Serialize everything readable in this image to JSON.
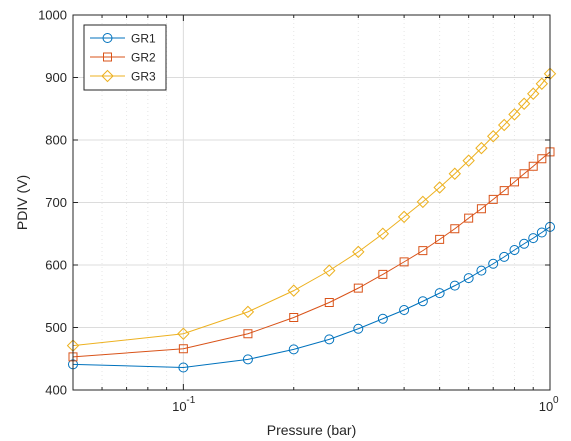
{
  "chart_data": {
    "type": "line",
    "title": "",
    "xlabel": "Pressure (bar)",
    "ylabel": "PDIV (V)",
    "xscale": "log",
    "xlim": [
      0.05,
      1
    ],
    "ylim": [
      400,
      1000
    ],
    "grid": true,
    "legend_position": "top-left",
    "x_tick_labels": [
      {
        "value": 0.1,
        "base": "10",
        "exp": "-1"
      },
      {
        "value": 1,
        "base": "10",
        "exp": "0"
      }
    ],
    "y_ticks": [
      400,
      500,
      600,
      700,
      800,
      900,
      1000
    ],
    "y_tick_labels": [
      "400",
      "500",
      "600",
      "700",
      "800",
      "900",
      "1000"
    ],
    "series": [
      {
        "name": "GR1",
        "color": "#0072BD",
        "marker": "circle",
        "x": [
          0.05,
          0.1,
          0.15,
          0.2,
          0.25,
          0.3,
          0.35,
          0.4,
          0.45,
          0.5,
          0.55,
          0.6,
          0.65,
          0.7,
          0.75,
          0.8,
          0.85,
          0.9,
          0.95,
          1.0
        ],
        "y": [
          441,
          436,
          449,
          465,
          481,
          498,
          514,
          528,
          542,
          555,
          567,
          579,
          591,
          602,
          613,
          624,
          634,
          643,
          652,
          661
        ]
      },
      {
        "name": "GR2",
        "color": "#D95319",
        "marker": "square",
        "x": [
          0.05,
          0.1,
          0.15,
          0.2,
          0.25,
          0.3,
          0.35,
          0.4,
          0.45,
          0.5,
          0.55,
          0.6,
          0.65,
          0.7,
          0.75,
          0.8,
          0.85,
          0.9,
          0.95,
          1.0
        ],
        "y": [
          453,
          466,
          490,
          516,
          540,
          563,
          585,
          605,
          623,
          641,
          658,
          675,
          690,
          705,
          719,
          733,
          746,
          758,
          770,
          781
        ]
      },
      {
        "name": "GR3",
        "color": "#EDB120",
        "marker": "diamond",
        "x": [
          0.05,
          0.1,
          0.15,
          0.2,
          0.25,
          0.3,
          0.35,
          0.4,
          0.45,
          0.5,
          0.55,
          0.6,
          0.65,
          0.7,
          0.75,
          0.8,
          0.85,
          0.9,
          0.95,
          1.0
        ],
        "y": [
          471,
          490,
          525,
          559,
          591,
          621,
          650,
          677,
          701,
          724,
          746,
          767,
          787,
          806,
          824,
          841,
          858,
          874,
          890,
          906
        ]
      }
    ]
  }
}
